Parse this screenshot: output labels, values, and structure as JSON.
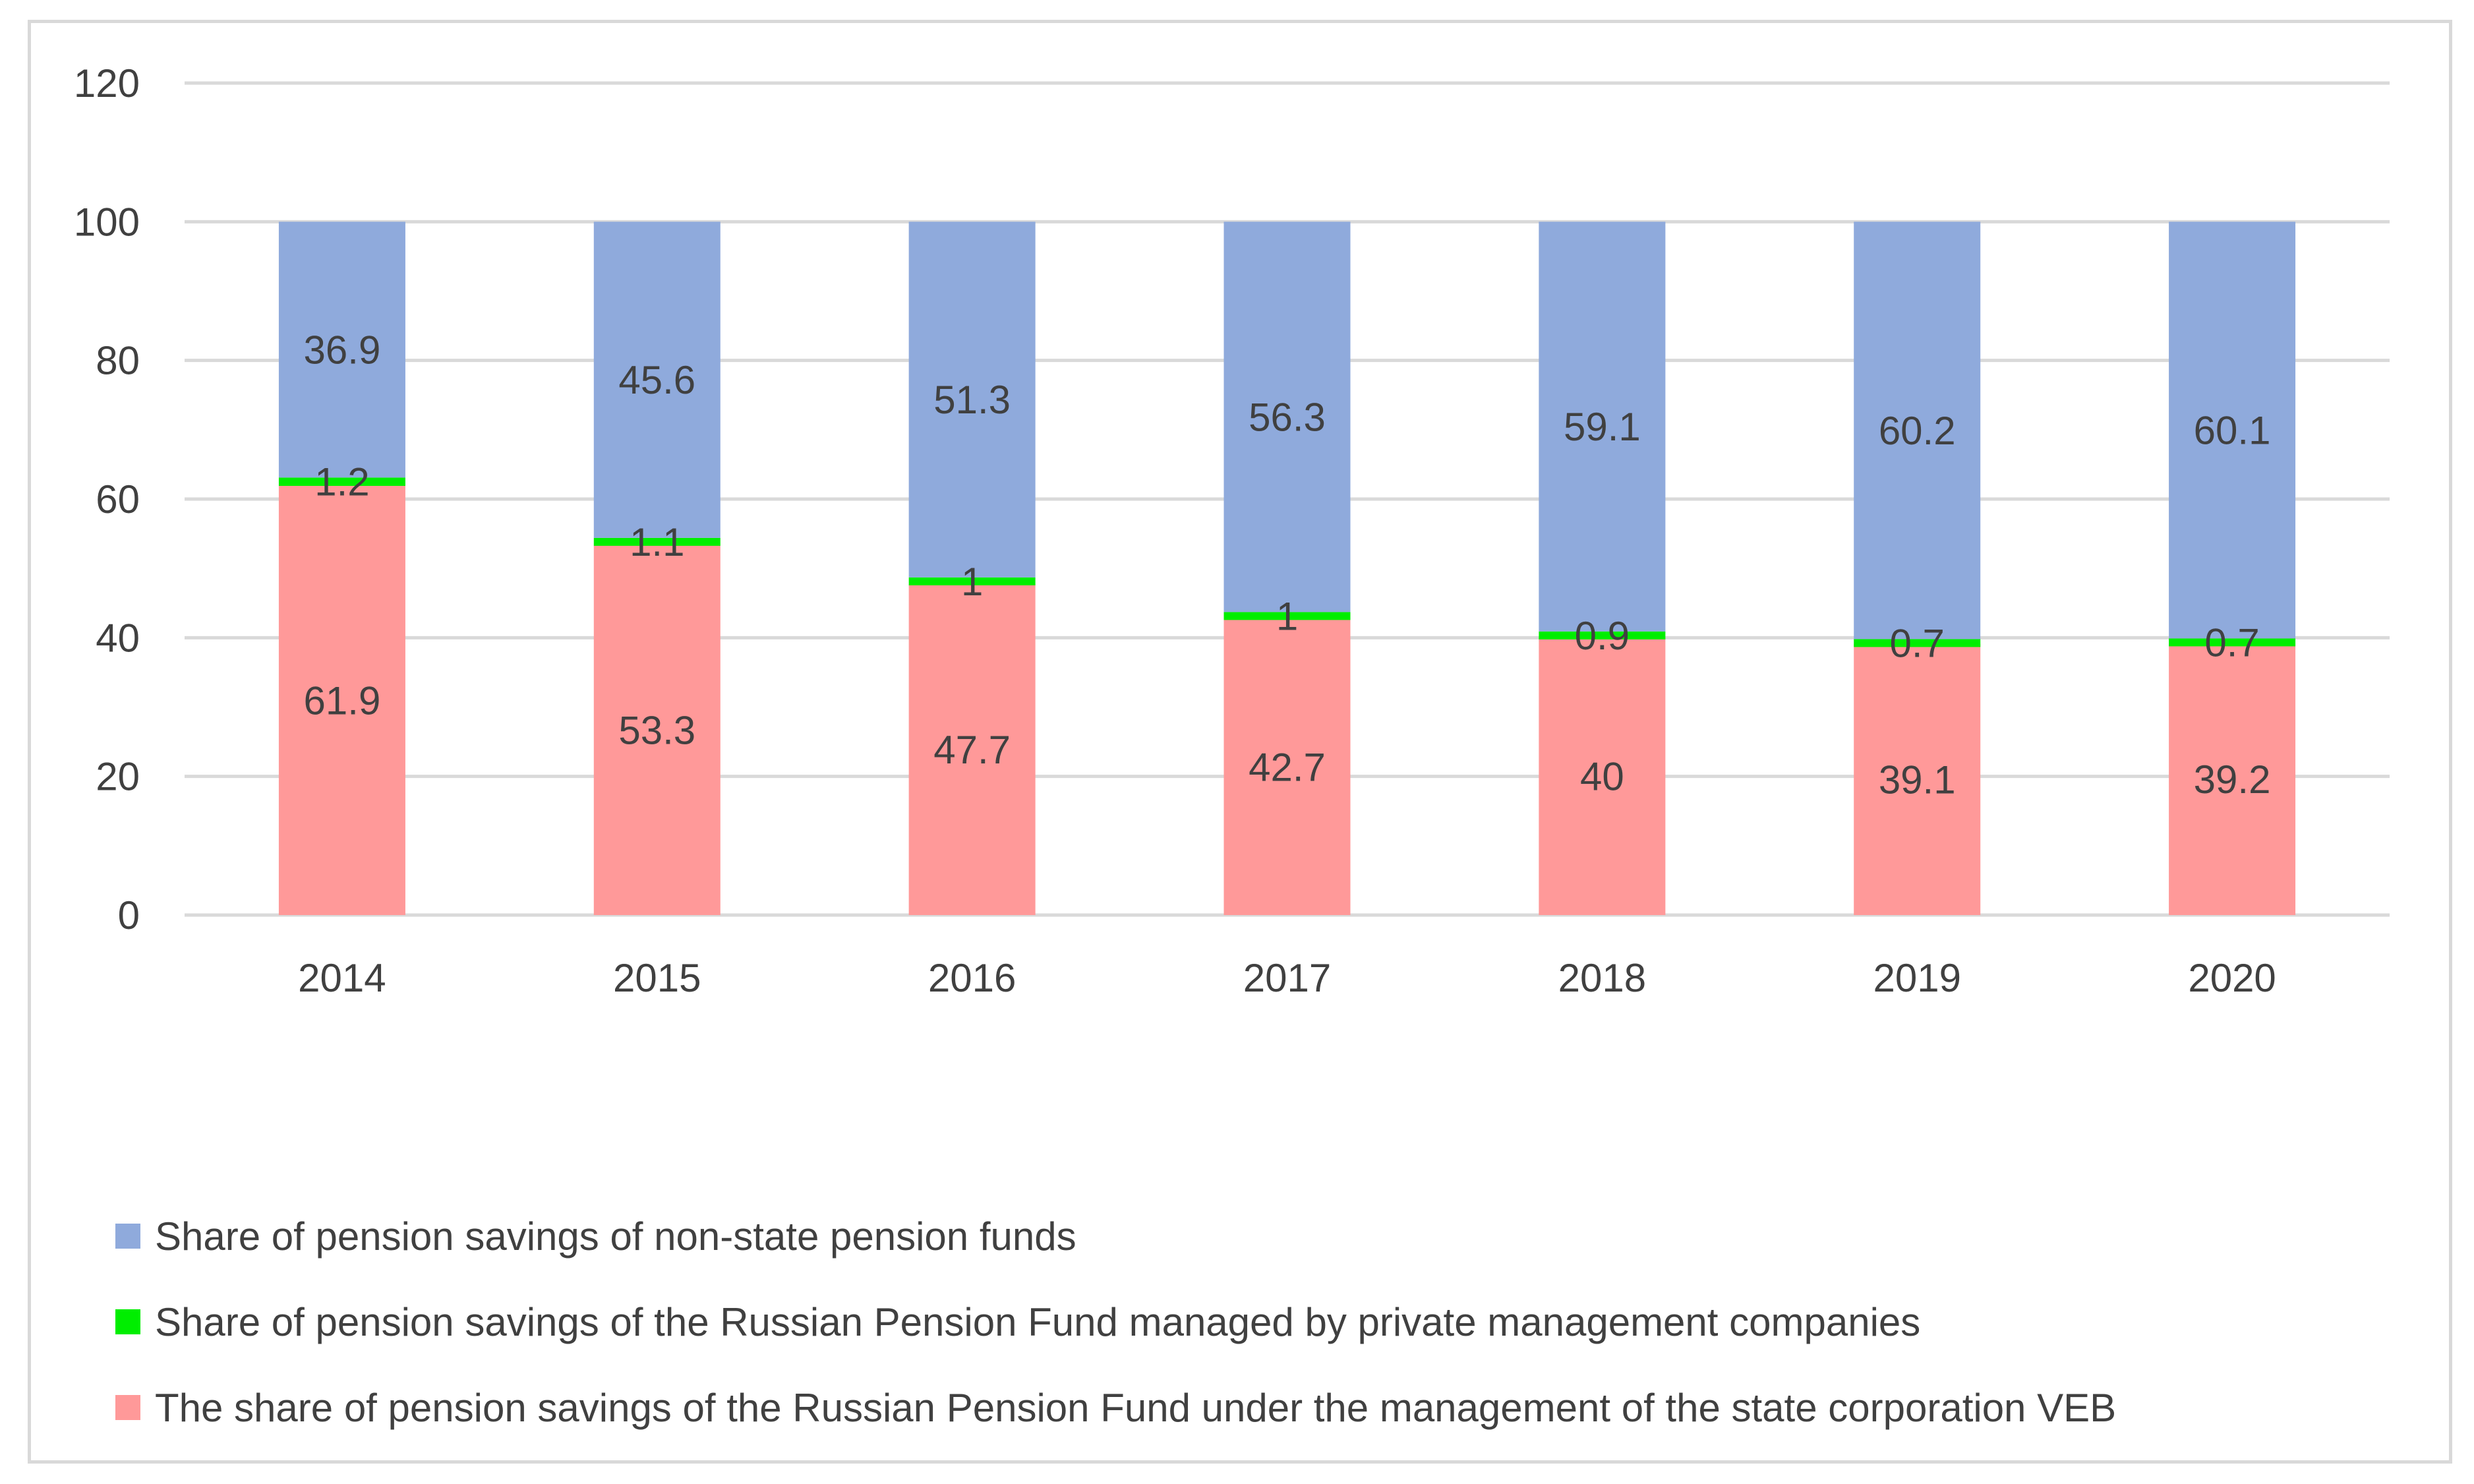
{
  "chart_data": {
    "type": "bar",
    "stacked": true,
    "title": "",
    "xlabel": "",
    "ylabel": "",
    "ylim": [
      0,
      120
    ],
    "yticks": [
      0,
      20,
      40,
      60,
      80,
      100,
      120
    ],
    "grid": true,
    "legend_position": "bottom-left",
    "categories": [
      "2014",
      "2015",
      "2016",
      "2017",
      "2018",
      "2019",
      "2020"
    ],
    "series": [
      {
        "name": "The share of pension savings of the Russian Pension Fund under the management of the state corporation VEB",
        "color": "#ff9999",
        "values": [
          61.9,
          53.3,
          47.7,
          42.7,
          40,
          39.1,
          39.2
        ]
      },
      {
        "name": "Share of pension savings of the Russian Pension Fund managed by private management companies",
        "color": "#00ee00",
        "values": [
          1.2,
          1.1,
          1,
          1,
          0.9,
          0.7,
          0.7
        ]
      },
      {
        "name": "Share of pension savings of non-state pension funds",
        "color": "#8faadc",
        "values": [
          36.9,
          45.6,
          51.3,
          56.3,
          59.1,
          60.2,
          60.1
        ]
      }
    ],
    "legend_order": [
      2,
      1,
      0
    ]
  },
  "colors": {
    "text": "#404040",
    "grid": "#d9d9d9",
    "border": "#d9d9d9"
  }
}
